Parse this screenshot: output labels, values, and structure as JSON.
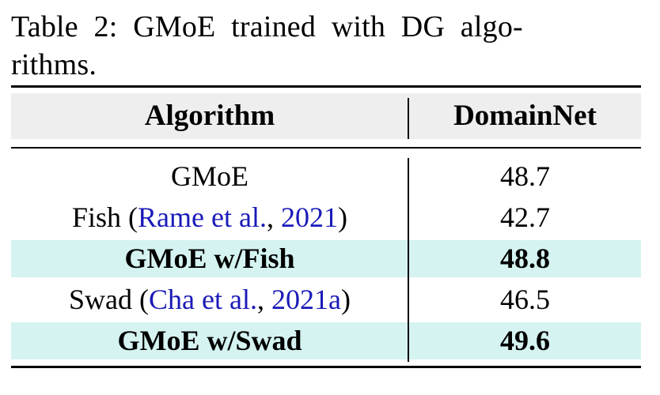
{
  "caption": {
    "line1": "Table 2:  GMoE trained with DG algo-",
    "line2": "rithms."
  },
  "table": {
    "headers": [
      "Algorithm",
      "DomainNet"
    ],
    "rows": [
      {
        "pre": "GMoE",
        "cite": "",
        "mid": "",
        "cite2": "",
        "post": "",
        "value": "48.7",
        "bold": false,
        "highlight": false
      },
      {
        "pre": "Fish (",
        "cite": "Rame et al.",
        "mid": ", ",
        "cite2": "2021",
        "post": ")",
        "value": "42.7",
        "bold": false,
        "highlight": false
      },
      {
        "pre": "GMoE w/Fish",
        "cite": "",
        "mid": "",
        "cite2": "",
        "post": "",
        "value": "48.8",
        "bold": true,
        "highlight": true
      },
      {
        "pre": "Swad (",
        "cite": "Cha et al.",
        "mid": ", ",
        "cite2": "2021a",
        "post": ")",
        "value": "46.5",
        "bold": false,
        "highlight": false
      },
      {
        "pre": "GMoE w/Swad",
        "cite": "",
        "mid": "",
        "cite2": "",
        "post": "",
        "value": "49.6",
        "bold": true,
        "highlight": true
      }
    ]
  },
  "colors": {
    "highlight": "#d4f3f1",
    "header_band": "#eeeeee",
    "citation": "#1a1ab8"
  }
}
